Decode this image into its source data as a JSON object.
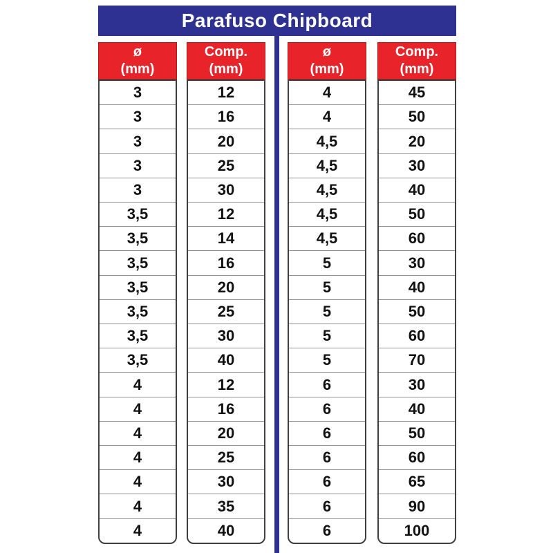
{
  "title": "Parafuso Chipboard",
  "colors": {
    "blue": "#2e3192",
    "red": "#e8232a",
    "border": "#3f3f3f",
    "row_line": "#8f8f8f",
    "cell_text": "#111111",
    "header_text": "#ffffff"
  },
  "tables": [
    {
      "columns": [
        {
          "header": [
            "ø",
            "(mm)"
          ],
          "values": [
            "3",
            "3",
            "3",
            "3",
            "3",
            "3,5",
            "3,5",
            "3,5",
            "3,5",
            "3,5",
            "3,5",
            "3,5",
            "4",
            "4",
            "4",
            "4",
            "4",
            "4",
            "4"
          ]
        },
        {
          "header": [
            "Comp.",
            "(mm)"
          ],
          "values": [
            "12",
            "16",
            "20",
            "25",
            "30",
            "12",
            "14",
            "16",
            "20",
            "25",
            "30",
            "40",
            "12",
            "16",
            "20",
            "25",
            "30",
            "35",
            "40"
          ]
        }
      ]
    },
    {
      "columns": [
        {
          "header": [
            "ø",
            "(mm)"
          ],
          "values": [
            "4",
            "4",
            "4,5",
            "4,5",
            "4,5",
            "4,5",
            "4,5",
            "5",
            "5",
            "5",
            "5",
            "5",
            "6",
            "6",
            "6",
            "6",
            "6",
            "6",
            "6"
          ]
        },
        {
          "header": [
            "Comp.",
            "(mm)"
          ],
          "values": [
            "45",
            "50",
            "20",
            "30",
            "40",
            "50",
            "60",
            "30",
            "40",
            "50",
            "60",
            "70",
            "30",
            "40",
            "50",
            "60",
            "65",
            "90",
            "100"
          ]
        }
      ]
    }
  ]
}
